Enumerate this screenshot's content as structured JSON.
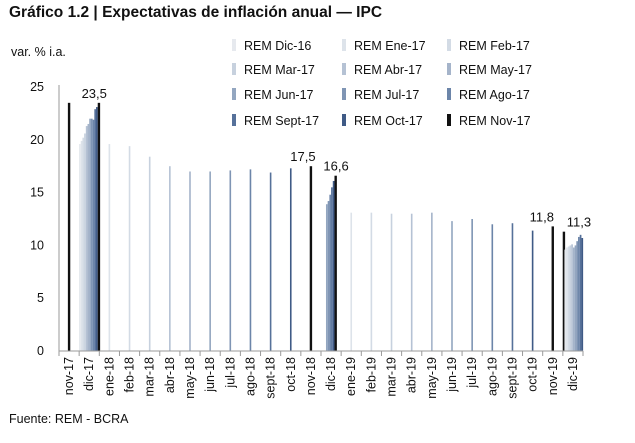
{
  "title": "Gráfico 1.2 | Expectativas de inflación anual — IPC",
  "source": "Fuente: REM - BCRA",
  "chart_data": {
    "type": "bar",
    "ylabel": "var. % i.a.",
    "ylim": [
      0,
      25
    ],
    "yticks": [
      0,
      5,
      10,
      15,
      20,
      25
    ],
    "categories": [
      "nov-17",
      "dic-17",
      "ene-18",
      "feb-18",
      "mar-18",
      "abr-18",
      "may-18",
      "jun-18",
      "jul-18",
      "ago-18",
      "sept-18",
      "oct-18",
      "nov-18",
      "dic-18",
      "ene-19",
      "feb-19",
      "mar-19",
      "abr-19",
      "may-19",
      "jun-19",
      "jul-19",
      "ago-19",
      "sept-19",
      "oct-19",
      "nov-19",
      "dic-19"
    ],
    "series": [
      {
        "name": "REM Dic-16",
        "color": "#e6e9ee",
        "values": {
          "dic-17": 19.6
        }
      },
      {
        "name": "REM Ene-17",
        "color": "#dde3ea",
        "values": {
          "dic-17": 19.9,
          "ene-18": 19.6
        }
      },
      {
        "name": "REM Feb-17",
        "color": "#d3dbe5",
        "values": {
          "dic-17": 20.2,
          "feb-18": 19.4
        }
      },
      {
        "name": "REM Mar-17",
        "color": "#c7d1de",
        "values": {
          "dic-17": 20.6,
          "mar-18": 18.4
        }
      },
      {
        "name": "REM Abr-17",
        "color": "#b5c2d4",
        "values": {
          "dic-17": 21.3,
          "abr-18": 17.5
        }
      },
      {
        "name": "REM May-17",
        "color": "#a5b4ca",
        "values": {
          "dic-17": 21.5,
          "may-18": 17.0
        }
      },
      {
        "name": "REM Jun-17",
        "color": "#93a6c0",
        "values": {
          "dic-17": 22.0,
          "jun-18": 17.0,
          "dic-18": 13.9
        }
      },
      {
        "name": "REM Jul-17",
        "color": "#7f95b4",
        "values": {
          "dic-17": 22.0,
          "jul-18": 17.1,
          "dic-18": 14.2,
          "jul-19": 12.5
        }
      },
      {
        "name": "REM Ago-17",
        "color": "#6c85a9",
        "values": {
          "dic-17": 21.9,
          "ago-18": 17.2,
          "dic-18": 14.8,
          "ago-19": 12.0
        }
      },
      {
        "name": "REM Sept-17",
        "color": "#56719a",
        "values": {
          "dic-17": 22.9,
          "sept-18": 16.9,
          "dic-18": 15.5,
          "sept-19": 12.1
        }
      },
      {
        "name": "REM Oct-17",
        "color": "#3f5a86",
        "values": {
          "dic-17": 23.1,
          "oct-18": 17.3,
          "dic-18": 16.1,
          "oct-19": 11.4
        }
      },
      {
        "name": "REM Nov-17",
        "color": "#111111",
        "values": {
          "nov-17": 23.5,
          "dic-17": 23.5,
          "nov-18": 17.5,
          "dic-18": 16.6,
          "nov-19": 11.8,
          "dic-19": 11.3
        }
      }
    ],
    "dic19_cluster": [
      9.6,
      9.8,
      9.9,
      10.0,
      10.1,
      9.8,
      10.0,
      10.4,
      10.8,
      11.0,
      10.7,
      11.3
    ],
    "single_bars": [
      {
        "category": "ene-19",
        "value": 13.1,
        "series": "REM Ene-17"
      },
      {
        "category": "feb-19",
        "value": 13.1,
        "series": "REM Feb-17"
      },
      {
        "category": "mar-19",
        "value": 13.0,
        "series": "REM Mar-17"
      },
      {
        "category": "abr-19",
        "value": 13.0,
        "series": "REM Abr-17"
      },
      {
        "category": "may-19",
        "value": 13.1,
        "series": "REM May-17"
      },
      {
        "category": "jun-19",
        "value": 12.3,
        "series": "REM Jun-17"
      }
    ],
    "data_labels": [
      {
        "category": "dic-17",
        "text": "23,5",
        "value": 23.5
      },
      {
        "category": "nov-18",
        "text": "17,5",
        "value": 17.5
      },
      {
        "category": "dic-18",
        "text": "16,6",
        "value": 16.6
      },
      {
        "category": "nov-19",
        "text": "11,8",
        "value": 11.8
      },
      {
        "category": "dic-19",
        "text": "11,3",
        "value": 11.3
      }
    ],
    "legend_position": "top-right"
  }
}
